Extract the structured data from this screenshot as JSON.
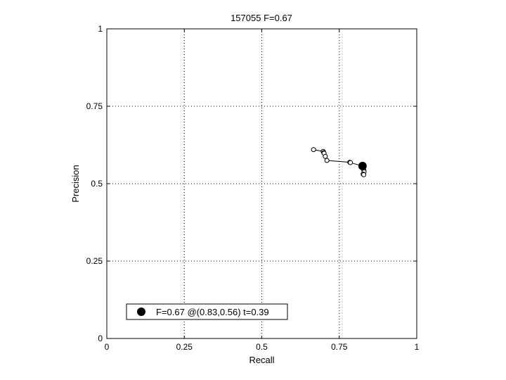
{
  "chart_data": {
    "type": "line",
    "title": "157055 F=0.67",
    "xlabel": "Recall",
    "ylabel": "Precision",
    "xlim": [
      0,
      1
    ],
    "ylim": [
      0,
      1
    ],
    "xticks": [
      0,
      0.25,
      0.5,
      0.75,
      1
    ],
    "yticks": [
      0,
      0.25,
      0.5,
      0.75,
      1
    ],
    "xtick_labels": [
      "0",
      "0.25",
      "0.5",
      "0.75",
      "1"
    ],
    "ytick_labels": [
      "0",
      "0.25",
      "0.5",
      "0.75",
      "1"
    ],
    "grid": true,
    "series": [
      {
        "x": [
          0.667,
          0.698,
          0.7,
          0.701,
          0.705,
          0.71,
          0.784,
          0.786,
          0.825,
          0.829,
          0.83,
          0.827,
          0.829
        ],
        "y": [
          0.61,
          0.604,
          0.6,
          0.598,
          0.588,
          0.575,
          0.569,
          0.568,
          0.557,
          0.544,
          0.538,
          0.531,
          0.529
        ]
      }
    ],
    "best_point": {
      "x": 0.825,
      "y": 0.557
    },
    "legend": {
      "position": "bottom-left",
      "entries": [
        "F=0.67 @(0.83,0.56) t=0.39"
      ]
    },
    "colors": {
      "line": "#000000",
      "grid": "#000000",
      "background": "#ffffff"
    }
  }
}
